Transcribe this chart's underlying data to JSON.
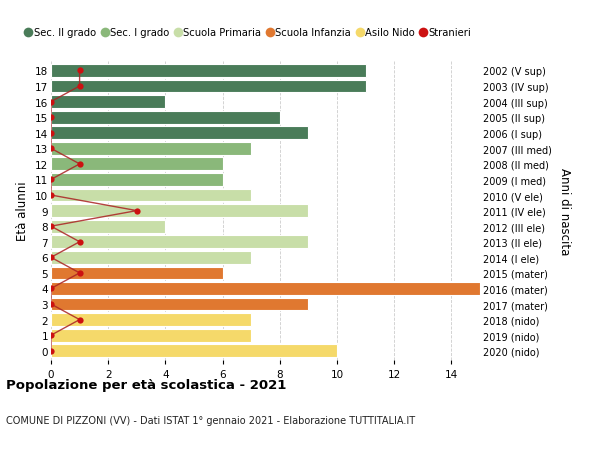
{
  "ages": [
    18,
    17,
    16,
    15,
    14,
    13,
    12,
    11,
    10,
    9,
    8,
    7,
    6,
    5,
    4,
    3,
    2,
    1,
    0
  ],
  "years": [
    "2002 (V sup)",
    "2003 (IV sup)",
    "2004 (III sup)",
    "2005 (II sup)",
    "2006 (I sup)",
    "2007 (III med)",
    "2008 (II med)",
    "2009 (I med)",
    "2010 (V ele)",
    "2011 (IV ele)",
    "2012 (III ele)",
    "2013 (II ele)",
    "2014 (I ele)",
    "2015 (mater)",
    "2016 (mater)",
    "2017 (mater)",
    "2018 (nido)",
    "2019 (nido)",
    "2020 (nido)"
  ],
  "bar_values": [
    11,
    11,
    4,
    8,
    9,
    7,
    6,
    6,
    7,
    9,
    4,
    9,
    7,
    6,
    15,
    9,
    7,
    7,
    10
  ],
  "bar_colors": [
    "#4a7c59",
    "#4a7c59",
    "#4a7c59",
    "#4a7c59",
    "#4a7c59",
    "#8ab87a",
    "#8ab87a",
    "#8ab87a",
    "#c8dea8",
    "#c8dea8",
    "#c8dea8",
    "#c8dea8",
    "#c8dea8",
    "#e07830",
    "#e07830",
    "#e07830",
    "#f5d96a",
    "#f5d96a",
    "#f5d96a"
  ],
  "stranieri_values": [
    1,
    1,
    0,
    0,
    0,
    0,
    1,
    0,
    0,
    3,
    0,
    1,
    0,
    1,
    0,
    0,
    1,
    0,
    0
  ],
  "title_bold": "Popolazione per età scolastica - 2021",
  "subtitle": "COMUNE DI PIZZONI (VV) - Dati ISTAT 1° gennaio 2021 - Elaborazione TUTTITALIA.IT",
  "ylabel": "Età alunni",
  "ylabel2": "Anni di nascita",
  "legend_labels": [
    "Sec. II grado",
    "Sec. I grado",
    "Scuola Primaria",
    "Scuola Infanzia",
    "Asilo Nido",
    "Stranieri"
  ],
  "legend_colors": [
    "#4a7c59",
    "#8ab87a",
    "#c8dea8",
    "#e07830",
    "#f5d96a",
    "#cc1111"
  ],
  "bg_color": "#ffffff",
  "grid_color": "#cccccc",
  "bar_height": 0.82,
  "xlim": [
    0,
    15
  ],
  "xticks": [
    0,
    2,
    4,
    6,
    8,
    10,
    12,
    14
  ],
  "stranieri_line_color": "#aa2222",
  "stranieri_dot_color": "#cc1111"
}
